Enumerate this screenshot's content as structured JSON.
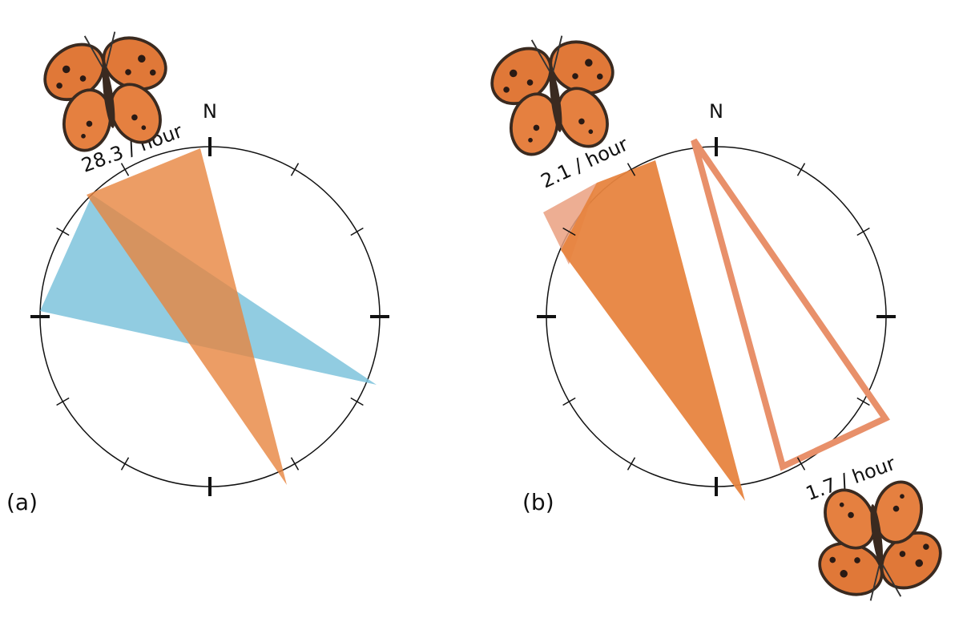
{
  "panels": [
    {
      "label": "(a)",
      "north": "N",
      "rates": [
        "28.3 / hour"
      ]
    },
    {
      "label": "(b)",
      "north": "N",
      "rates": [
        "2.1 / hour",
        "1.7 / hour"
      ]
    }
  ]
}
